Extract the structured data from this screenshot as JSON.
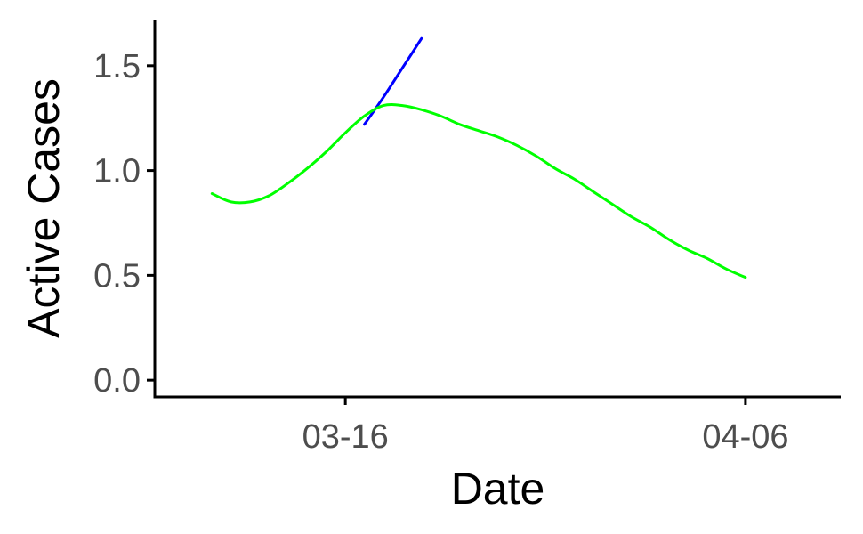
{
  "chart_data": {
    "type": "line",
    "xlabel": "Date",
    "ylabel": "Active Cases",
    "xlim": [
      "2020-03-06",
      "2020-04-11"
    ],
    "ylim": [
      -0.08,
      1.72
    ],
    "x_ticks": [
      {
        "date": "2020-03-16",
        "label": "03-16"
      },
      {
        "date": "2020-04-06",
        "label": "04-06"
      }
    ],
    "y_ticks": [
      {
        "value": 0.0,
        "label": "0.0"
      },
      {
        "value": 0.5,
        "label": "0.5"
      },
      {
        "value": 1.0,
        "label": "1.0"
      },
      {
        "value": 1.5,
        "label": "1.5"
      }
    ],
    "grid": false,
    "legend": "none",
    "series": [
      {
        "color": "#0000ff",
        "points": [
          {
            "x": "2020-03-17",
            "y": 1.22
          },
          {
            "x": "2020-03-18",
            "y": 1.35
          },
          {
            "x": "2020-03-19",
            "y": 1.49
          },
          {
            "x": "2020-03-20",
            "y": 1.63
          }
        ]
      },
      {
        "color": "#00ff00",
        "points": [
          {
            "x": "2020-03-09",
            "y": 0.89
          },
          {
            "x": "2020-03-10",
            "y": 0.85
          },
          {
            "x": "2020-03-11",
            "y": 0.85
          },
          {
            "x": "2020-03-12",
            "y": 0.88
          },
          {
            "x": "2020-03-13",
            "y": 0.94
          },
          {
            "x": "2020-03-14",
            "y": 1.01
          },
          {
            "x": "2020-03-15",
            "y": 1.09
          },
          {
            "x": "2020-03-16",
            "y": 1.18
          },
          {
            "x": "2020-03-17",
            "y": 1.26
          },
          {
            "x": "2020-03-18",
            "y": 1.31
          },
          {
            "x": "2020-03-19",
            "y": 1.31
          },
          {
            "x": "2020-03-20",
            "y": 1.29
          },
          {
            "x": "2020-03-21",
            "y": 1.26
          },
          {
            "x": "2020-03-22",
            "y": 1.22
          },
          {
            "x": "2020-03-23",
            "y": 1.19
          },
          {
            "x": "2020-03-24",
            "y": 1.16
          },
          {
            "x": "2020-03-25",
            "y": 1.12
          },
          {
            "x": "2020-03-26",
            "y": 1.07
          },
          {
            "x": "2020-03-27",
            "y": 1.01
          },
          {
            "x": "2020-03-28",
            "y": 0.96
          },
          {
            "x": "2020-03-29",
            "y": 0.9
          },
          {
            "x": "2020-03-30",
            "y": 0.84
          },
          {
            "x": "2020-03-31",
            "y": 0.78
          },
          {
            "x": "2020-04-01",
            "y": 0.73
          },
          {
            "x": "2020-04-02",
            "y": 0.67
          },
          {
            "x": "2020-04-03",
            "y": 0.62
          },
          {
            "x": "2020-04-04",
            "y": 0.58
          },
          {
            "x": "2020-04-05",
            "y": 0.53
          },
          {
            "x": "2020-04-06",
            "y": 0.49
          }
        ]
      }
    ]
  }
}
